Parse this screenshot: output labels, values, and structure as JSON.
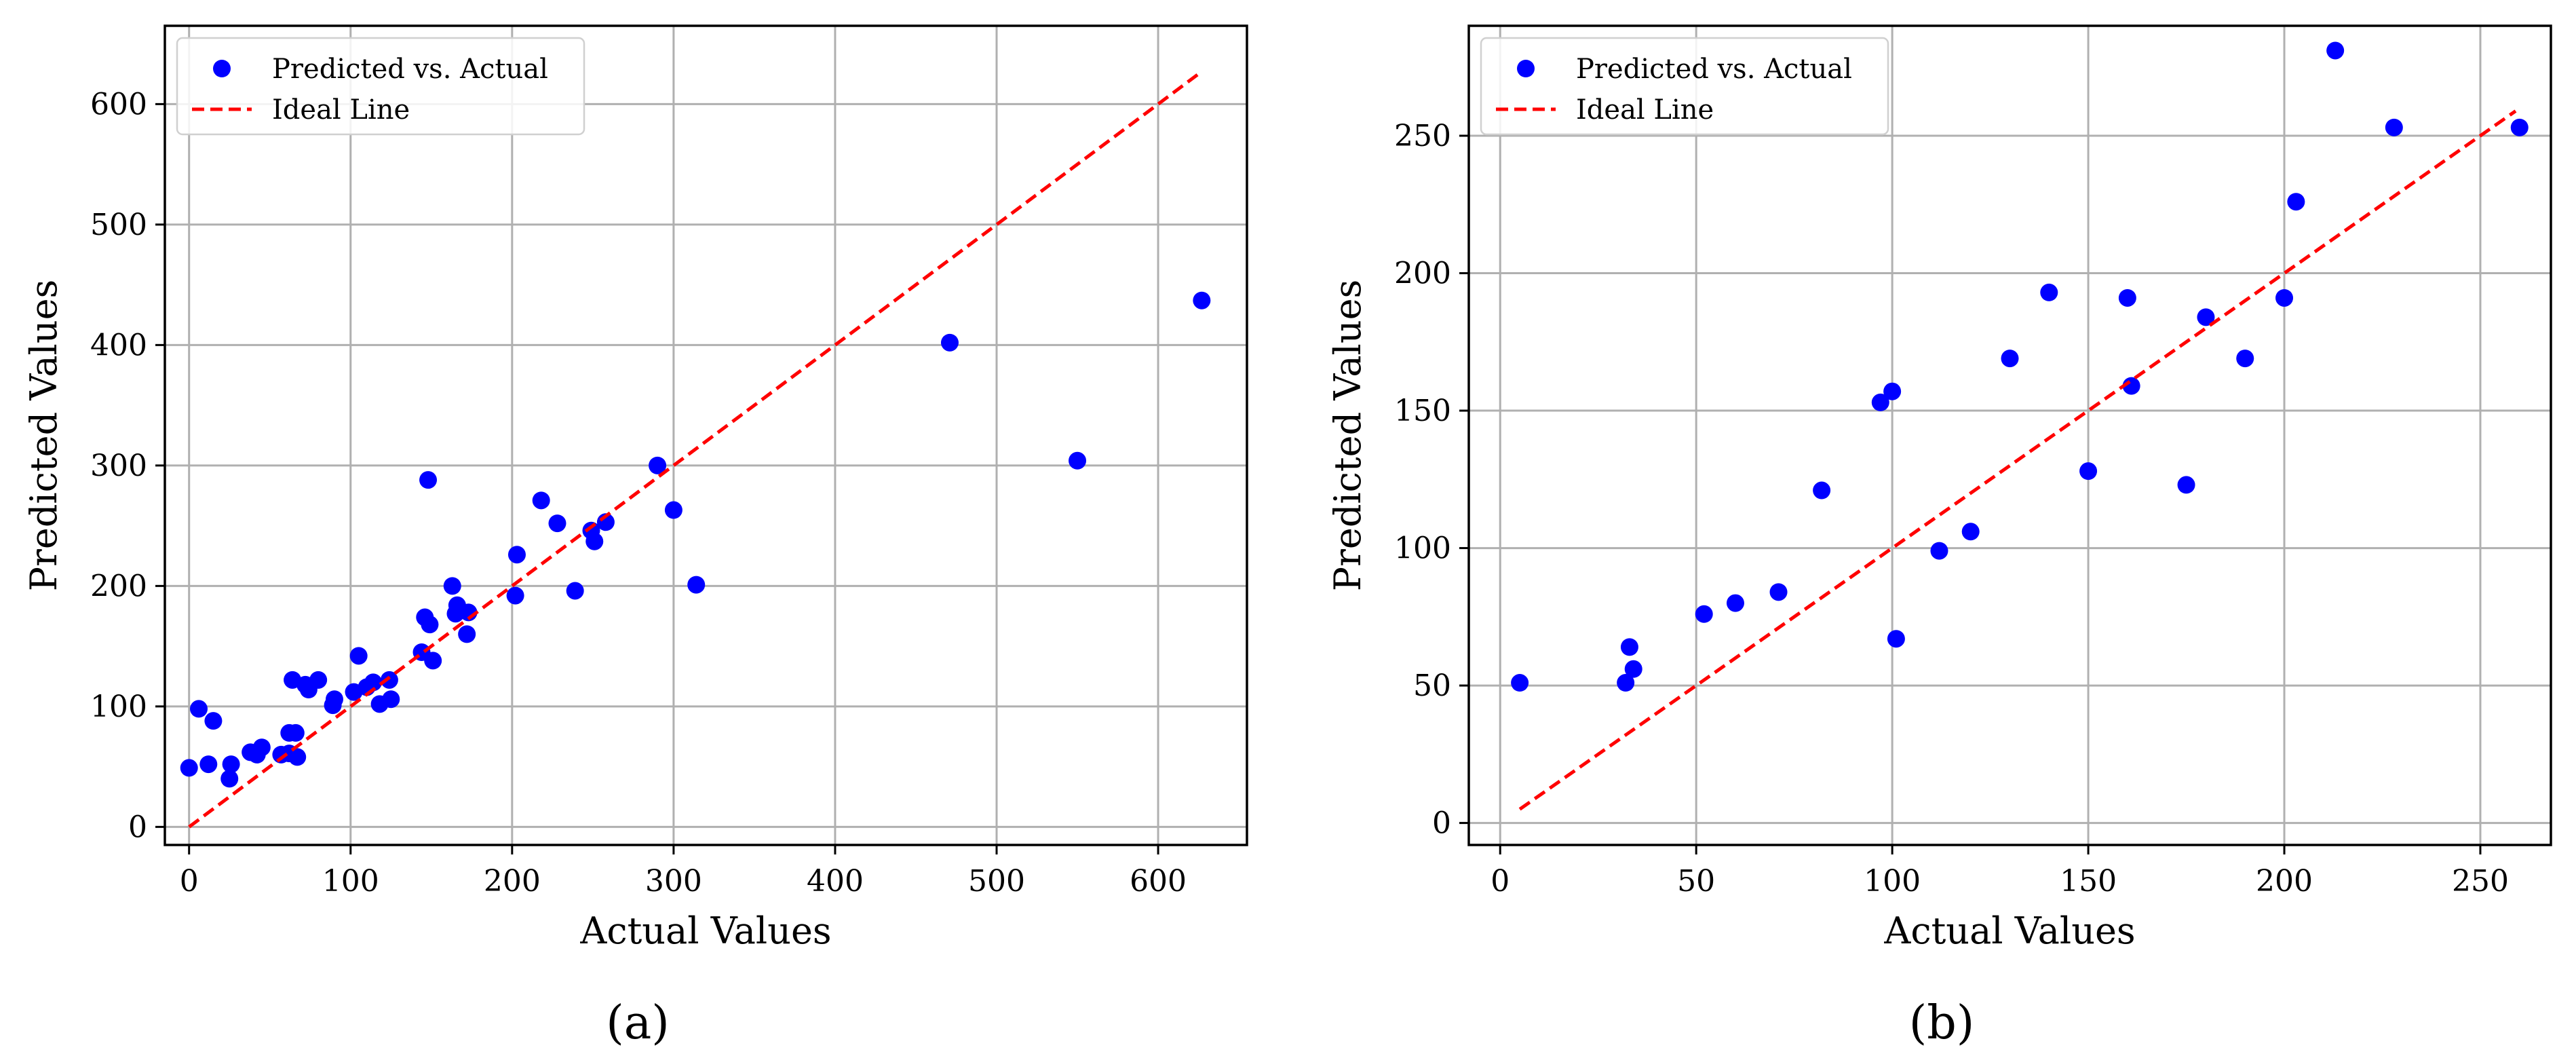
{
  "figure_labels": [
    "(a)",
    "(b)"
  ],
  "chart_data": [
    {
      "type": "scatter",
      "title": "",
      "xlabel": "Actual Values",
      "ylabel": "Predicted Values",
      "xlim": [
        -15,
        655
      ],
      "ylim": [
        -15,
        665
      ],
      "xticks": [
        0,
        100,
        200,
        300,
        400,
        500,
        600
      ],
      "yticks": [
        0,
        100,
        200,
        300,
        400,
        500,
        600
      ],
      "grid": true,
      "legend_position": "top-left",
      "series": [
        {
          "name": "Predicted vs. Actual",
          "kind": "scatter",
          "color": "#0000ff",
          "points": [
            [
              0,
              49
            ],
            [
              6,
              98
            ],
            [
              12,
              52
            ],
            [
              15,
              88
            ],
            [
              25,
              40
            ],
            [
              26,
              52
            ],
            [
              38,
              62
            ],
            [
              42,
              60
            ],
            [
              45,
              66
            ],
            [
              57,
              60
            ],
            [
              62,
              78
            ],
            [
              62,
              61
            ],
            [
              64,
              122
            ],
            [
              66,
              78
            ],
            [
              67,
              58
            ],
            [
              72,
              118
            ],
            [
              74,
              114
            ],
            [
              80,
              122
            ],
            [
              89,
              101
            ],
            [
              90,
              106
            ],
            [
              102,
              112
            ],
            [
              105,
              142
            ],
            [
              110,
              116
            ],
            [
              114,
              120
            ],
            [
              118,
              102
            ],
            [
              124,
              122
            ],
            [
              125,
              106
            ],
            [
              144,
              145
            ],
            [
              146,
              174
            ],
            [
              148,
              288
            ],
            [
              149,
              168
            ],
            [
              151,
              138
            ],
            [
              163,
              200
            ],
            [
              165,
              177
            ],
            [
              166,
              184
            ],
            [
              172,
              160
            ],
            [
              173,
              178
            ],
            [
              202,
              192
            ],
            [
              203,
              226
            ],
            [
              218,
              271
            ],
            [
              228,
              252
            ],
            [
              239,
              196
            ],
            [
              249,
              246
            ],
            [
              251,
              237
            ],
            [
              258,
              253
            ],
            [
              290,
              300
            ],
            [
              300,
              263
            ],
            [
              314,
              201
            ],
            [
              471,
              402
            ],
            [
              550,
              304
            ],
            [
              627,
              437
            ]
          ]
        },
        {
          "name": "Ideal Line",
          "kind": "line",
          "style": "dashed",
          "color": "#ff0000",
          "points": [
            [
              0,
              0
            ],
            [
              627,
              627
            ]
          ]
        }
      ]
    },
    {
      "type": "scatter",
      "title": "",
      "xlabel": "Actual Values",
      "ylabel": "Predicted Values",
      "xlim": [
        -8,
        268
      ],
      "ylim": [
        -8,
        290
      ],
      "xticks": [
        0,
        50,
        100,
        150,
        200,
        250
      ],
      "yticks": [
        0,
        50,
        100,
        150,
        200,
        250
      ],
      "grid": true,
      "legend_position": "top-left",
      "series": [
        {
          "name": "Predicted vs. Actual",
          "kind": "scatter",
          "color": "#0000ff",
          "points": [
            [
              5,
              51
            ],
            [
              32,
              51
            ],
            [
              33,
              64
            ],
            [
              34,
              56
            ],
            [
              52,
              76
            ],
            [
              60,
              80
            ],
            [
              71,
              84
            ],
            [
              82,
              121
            ],
            [
              97,
              153
            ],
            [
              100,
              157
            ],
            [
              101,
              67
            ],
            [
              112,
              99
            ],
            [
              120,
              106
            ],
            [
              130,
              169
            ],
            [
              140,
              193
            ],
            [
              150,
              128
            ],
            [
              160,
              191
            ],
            [
              161,
              159
            ],
            [
              175,
              123
            ],
            [
              180,
              184
            ],
            [
              190,
              169
            ],
            [
              200,
              191
            ],
            [
              203,
              226
            ],
            [
              213,
              281
            ],
            [
              228,
              253
            ],
            [
              260,
              253
            ]
          ]
        },
        {
          "name": "Ideal Line",
          "kind": "line",
          "style": "dashed",
          "color": "#ff0000",
          "points": [
            [
              5,
              5
            ],
            [
              259,
              259
            ]
          ]
        }
      ]
    }
  ]
}
